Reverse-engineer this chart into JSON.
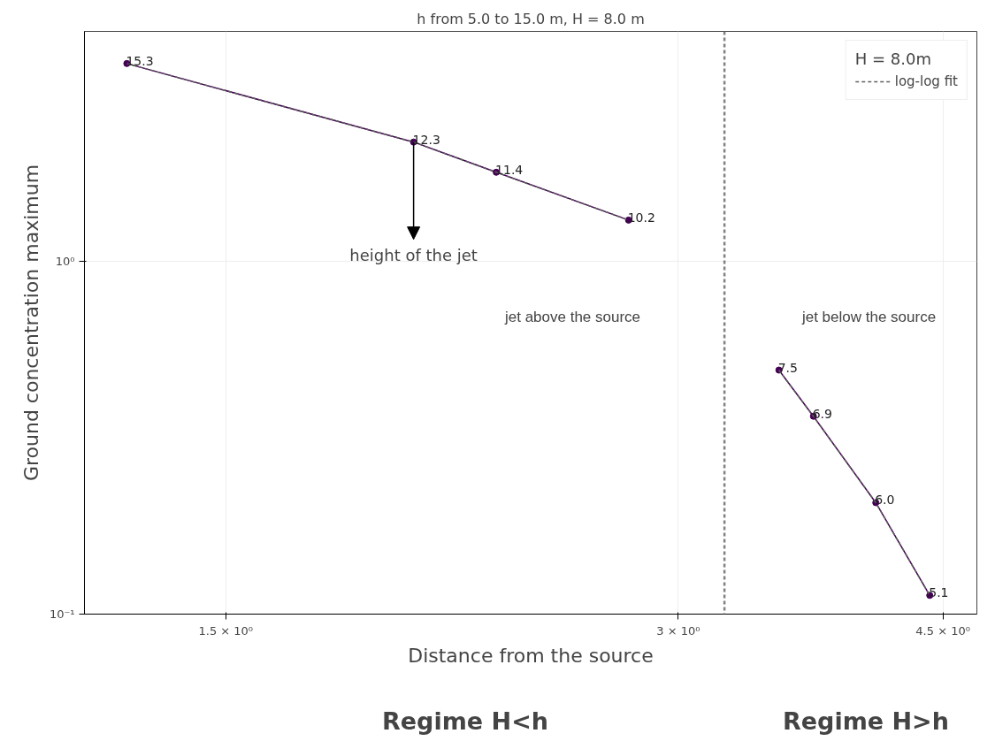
{
  "chart_data": {
    "type": "line",
    "title": "h from 5.0 to 15.0 m, H = 8.0 m",
    "xlabel": "Distance from the source",
    "ylabel": "Ground concentration maximum",
    "legend_title": "H = 8.0m",
    "log": "xy",
    "grid": true,
    "legend": "top right",
    "xlim": [
      1.208,
      4.74
    ],
    "ylim": [
      0.1,
      4.49
    ],
    "xticks": [
      {
        "value": 1.5,
        "label": "1.5 × 10⁰"
      },
      {
        "value": 3,
        "label": "3 × 10⁰"
      },
      {
        "value": 4.5,
        "label": "4.5 × 10⁰"
      }
    ],
    "yticks": [
      {
        "value": 0.1,
        "label": "10⁻¹"
      },
      {
        "value": 1,
        "label": "10⁰"
      }
    ],
    "series": [
      {
        "marker": "circle",
        "line_style": "solid",
        "color": "#440154",
        "x": [
          1.289,
          2.0,
          2.27,
          2.78
        ],
        "values": [
          3.64,
          2.18,
          1.79,
          1.31
        ]
      },
      {
        "marker": "circle",
        "line_style": "solid",
        "color": "#440154",
        "x": [
          3.5,
          3.69,
          4.06,
          4.41
        ],
        "values": [
          0.492,
          0.364,
          0.207,
          0.113
        ]
      },
      {
        "name": "log-log fit",
        "marker": "none",
        "line_style": "dashed",
        "color": "#606060",
        "x": [
          1.289,
          2.0,
          2.27,
          2.78
        ],
        "values": [
          3.64,
          2.18,
          1.79,
          1.31
        ]
      },
      {
        "marker": "none",
        "line_style": "dashed",
        "color": "#606060",
        "x": [
          3.5,
          3.69,
          4.06,
          4.41
        ],
        "values": [
          0.492,
          0.364,
          0.207,
          0.113
        ]
      }
    ],
    "ref_lines": [
      {
        "axis": "x",
        "value": 3.22,
        "color": "#808080",
        "line_style": "dashed"
      }
    ],
    "annotations": [
      {
        "text": "height of the jet",
        "x": 2.0,
        "y": 2.18
      },
      "jet above the source",
      "jet below the source",
      "Regime H<h",
      "Regime H>h",
      {
        "text": "15.3",
        "x": 1.289,
        "y": 3.64
      },
      {
        "text": "12.3",
        "x": 2.0,
        "y": 2.18
      },
      {
        "text": "11.4",
        "x": 2.27,
        "y": 1.79
      },
      {
        "text": "10.2",
        "x": 2.78,
        "y": 1.31
      },
      {
        "text": "7.5",
        "x": 3.5,
        "y": 0.492
      },
      {
        "text": "6.9",
        "x": 3.69,
        "y": 0.364
      },
      {
        "text": "6.0",
        "x": 4.06,
        "y": 0.207
      },
      {
        "text": "5.1",
        "x": 4.41,
        "y": 0.113
      }
    ]
  }
}
